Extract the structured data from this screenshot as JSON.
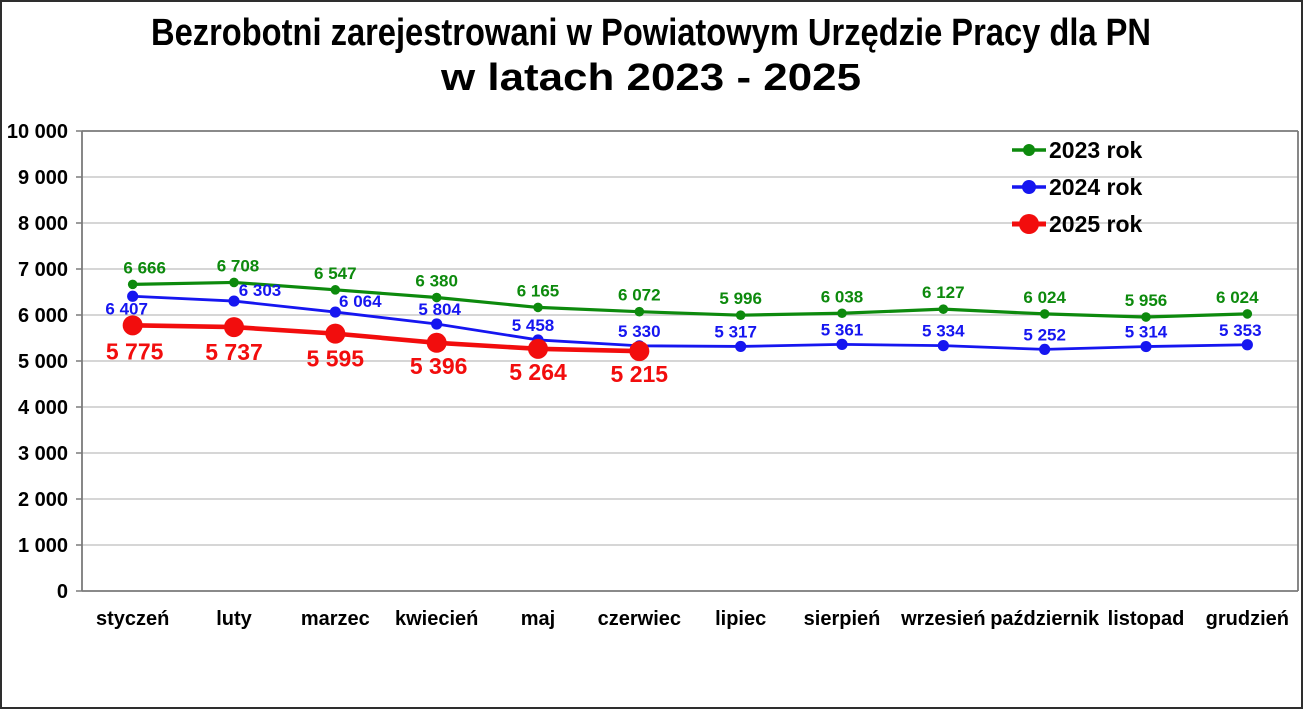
{
  "title": {
    "line1": "Bezrobotni zarejestrowani w Powiatowym Urzędzie Pracy dla PN",
    "line2": "w latach 2023 - 2025"
  },
  "chart_data": {
    "type": "line",
    "categories": [
      "styczeń",
      "luty",
      "marzec",
      "kwiecień",
      "maj",
      "czerwiec",
      "lipiec",
      "sierpień",
      "wrzesień",
      "październik",
      "listopad",
      "grudzień"
    ],
    "series": [
      {
        "name": "2023 rok",
        "color": "#0d8a0d",
        "values": [
          6666,
          6708,
          6547,
          6380,
          6165,
          6072,
          5996,
          6038,
          6127,
          6024,
          5956,
          6024
        ]
      },
      {
        "name": "2024 rok",
        "color": "#1616f0",
        "values": [
          6407,
          6303,
          6064,
          5804,
          5458,
          5330,
          5317,
          5361,
          5334,
          5252,
          5314,
          5353
        ]
      },
      {
        "name": "2025 rok",
        "color": "#f20d0d",
        "values": [
          5775,
          5737,
          5595,
          5396,
          5264,
          5215
        ]
      }
    ],
    "xlabel": "",
    "ylabel": "",
    "ylim": [
      0,
      10000
    ],
    "yticks": [
      0,
      1000,
      2000,
      3000,
      4000,
      5000,
      6000,
      7000,
      8000,
      9000,
      10000
    ],
    "grid": "horizontal",
    "legend_position": "upper-right",
    "data_labels": true,
    "number_format": "space-thousands"
  }
}
